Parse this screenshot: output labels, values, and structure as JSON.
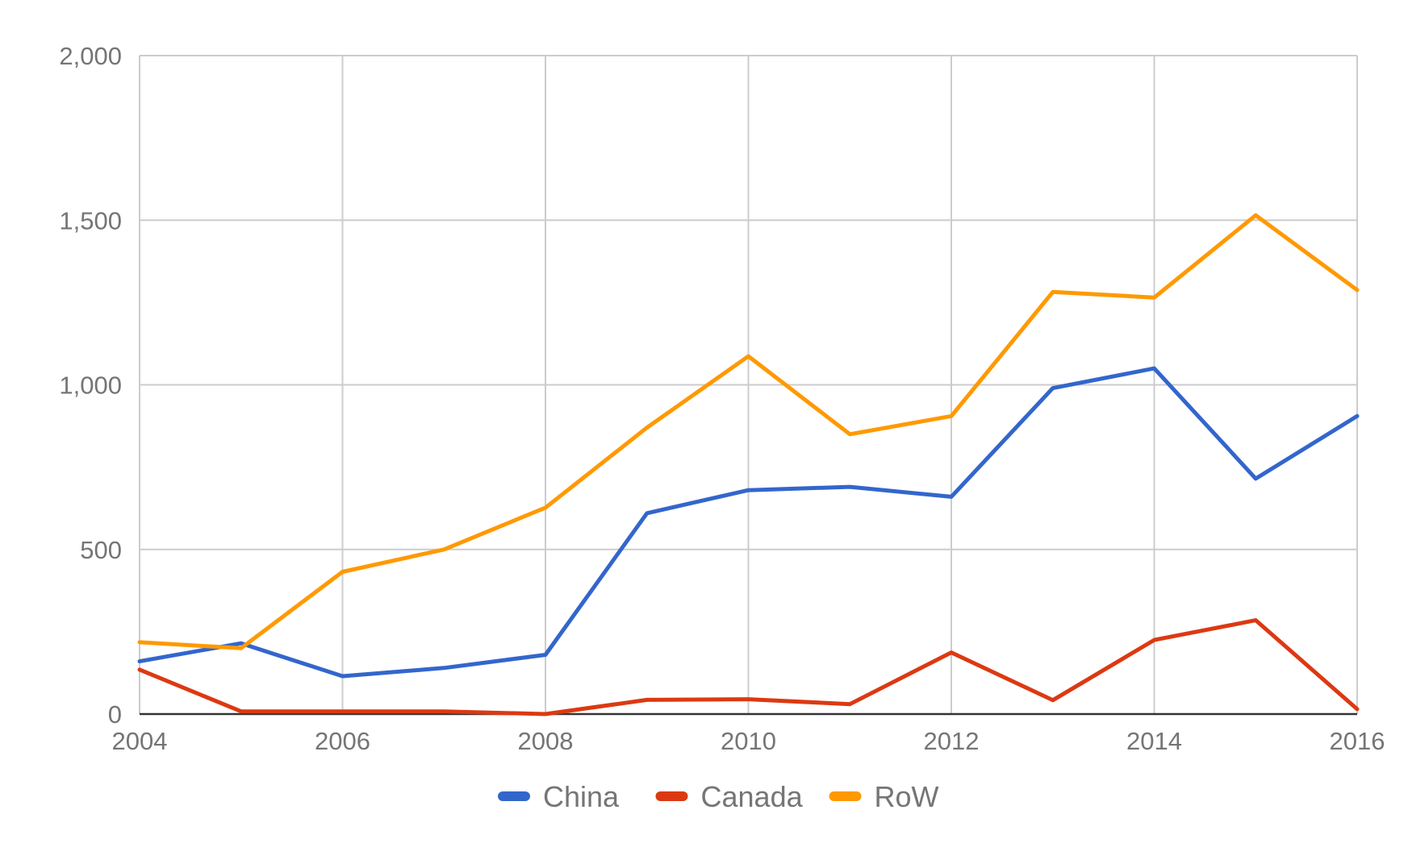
{
  "chart_data": {
    "type": "line",
    "title": "",
    "xlabel": "",
    "ylabel": "",
    "x": [
      2004,
      2005,
      2006,
      2007,
      2008,
      2009,
      2010,
      2011,
      2012,
      2013,
      2014,
      2015,
      2016
    ],
    "x_ticks": [
      "2004",
      "2006",
      "2008",
      "2010",
      "2012",
      "2014",
      "2016"
    ],
    "y_ticks": [
      "0",
      "500",
      "1,000",
      "1,500",
      "2,000"
    ],
    "xlim": [
      2004,
      2016
    ],
    "ylim": [
      0,
      2000
    ],
    "grid": true,
    "legend_position": "bottom",
    "series": [
      {
        "name": "China",
        "color": "#3366cc",
        "values": [
          160,
          215,
          115,
          140,
          180,
          610,
          680,
          690,
          660,
          990,
          1050,
          715,
          905
        ]
      },
      {
        "name": "Canada",
        "color": "#dc3912",
        "values": [
          135,
          8,
          8,
          8,
          0,
          43,
          45,
          30,
          187,
          42,
          225,
          285,
          15
        ]
      },
      {
        "name": "RoW",
        "color": "#ff9900",
        "values": [
          218,
          200,
          432,
          500,
          627,
          870,
          1087,
          850,
          905,
          1282,
          1265,
          1515,
          1288
        ]
      }
    ]
  }
}
